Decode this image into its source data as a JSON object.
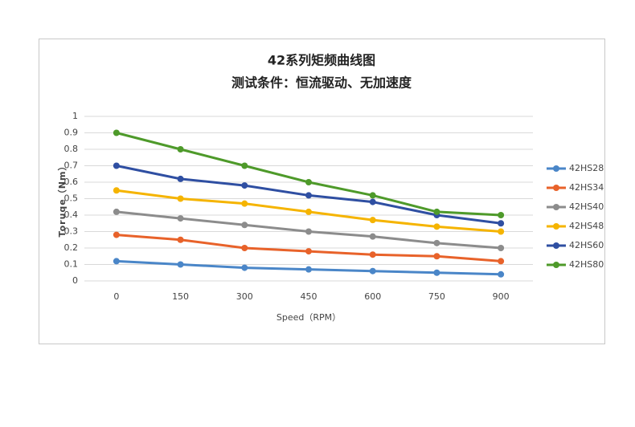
{
  "chart_data": {
    "type": "line",
    "title": [
      "42系列矩频曲线图",
      "测试条件：恒流驱动、无加速度"
    ],
    "x_label": "Speed（RPM）",
    "y_label": "Toruqe（Nm）",
    "categories": [
      "0",
      "150",
      "300",
      "450",
      "600",
      "750",
      "900"
    ],
    "ylim": [
      0,
      1
    ],
    "yticks": [
      0,
      0.1,
      0.2,
      0.3,
      0.4,
      0.5,
      0.6,
      0.7,
      0.8,
      0.9,
      1
    ],
    "grid": true,
    "legend": "right",
    "series": [
      {
        "name": "42HS28",
        "color": "#4a86c8",
        "values": [
          0.12,
          0.1,
          0.08,
          0.07,
          0.06,
          0.05,
          0.04
        ]
      },
      {
        "name": "42HS34",
        "color": "#e8622a",
        "values": [
          0.28,
          0.25,
          0.2,
          0.18,
          0.16,
          0.15,
          0.12
        ]
      },
      {
        "name": "42HS40",
        "color": "#8c8c8c",
        "values": [
          0.42,
          0.38,
          0.34,
          0.3,
          0.27,
          0.23,
          0.2
        ]
      },
      {
        "name": "42HS48",
        "color": "#f5b400",
        "values": [
          0.55,
          0.5,
          0.47,
          0.42,
          0.37,
          0.33,
          0.3
        ]
      },
      {
        "name": "42HS60",
        "color": "#2f4fa2",
        "values": [
          0.7,
          0.62,
          0.58,
          0.52,
          0.48,
          0.4,
          0.35
        ]
      },
      {
        "name": "42HS80",
        "color": "#4e9a2a",
        "values": [
          0.9,
          0.8,
          0.7,
          0.6,
          0.52,
          0.42,
          0.4
        ]
      }
    ]
  }
}
